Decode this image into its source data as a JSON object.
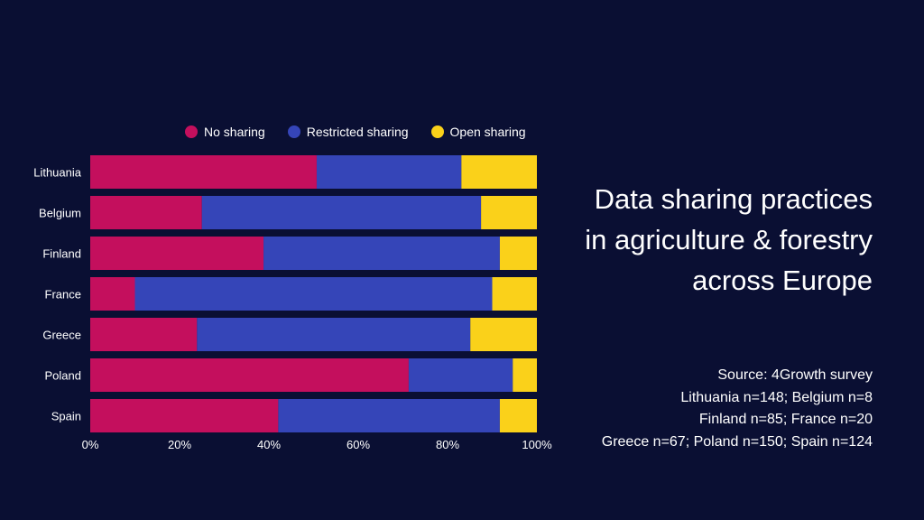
{
  "colors": {
    "background": "#0a0f33",
    "no_sharing": "#c40f5d",
    "restricted_sharing": "#3545b8",
    "open_sharing": "#fad11a"
  },
  "legend": {
    "items": [
      {
        "label": "No sharing",
        "color": "#c40f5d"
      },
      {
        "label": "Restricted sharing",
        "color": "#3545b8"
      },
      {
        "label": "Open sharing",
        "color": "#fad11a"
      }
    ]
  },
  "title": {
    "lines": [
      "Data sharing practices",
      "in agriculture & forestry",
      "across Europe"
    ]
  },
  "source": {
    "lines": [
      "Source: 4Growth survey",
      "Lithuania n=148; Belgium n=8",
      "Finland n=85; France n=20",
      "Greece n=67; Poland n=150; Spain n=124"
    ]
  },
  "chart_data": {
    "type": "bar",
    "orientation": "horizontal",
    "stacked": true,
    "categories": [
      "Lithuania",
      "Belgium",
      "Finland",
      "France",
      "Greece",
      "Poland",
      "Spain"
    ],
    "series": [
      {
        "name": "No sharing",
        "values": [
          50.7,
          25.0,
          38.8,
          10.0,
          23.9,
          71.3,
          42.1
        ]
      },
      {
        "name": "Restricted sharing",
        "values": [
          32.4,
          62.5,
          52.9,
          80.0,
          61.2,
          23.3,
          49.6
        ]
      },
      {
        "name": "Open sharing",
        "values": [
          16.9,
          12.5,
          8.3,
          10.0,
          14.9,
          5.4,
          8.3
        ]
      }
    ],
    "x_ticks": [
      "0%",
      "20%",
      "40%",
      "60%",
      "80%",
      "100%"
    ],
    "xlim": [
      0,
      100
    ],
    "legend_position": "top",
    "grid": false
  }
}
